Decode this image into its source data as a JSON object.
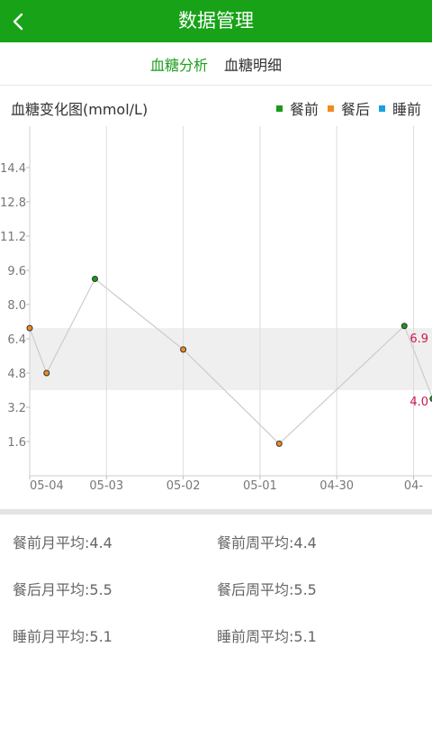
{
  "header": {
    "title": "数据管理",
    "back_icon": "chevron-left-icon"
  },
  "tabs": [
    {
      "label": "血糖分析",
      "active": true
    },
    {
      "label": "血糖明细",
      "active": false
    }
  ],
  "chart_header": {
    "title": "血糖变化图(mmol/L)",
    "legend": [
      {
        "label": "餐前",
        "color": "#1a9a1a"
      },
      {
        "label": "餐后",
        "color": "#f08a1c"
      },
      {
        "label": "睡前",
        "color": "#1aa0e0"
      }
    ]
  },
  "chart_data": {
    "type": "line",
    "title": "血糖变化图(mmol/L)",
    "y_ticks": [
      1.6,
      3.2,
      4.8,
      6.4,
      8.0,
      9.6,
      11.2,
      12.8,
      14.4
    ],
    "y_tick_labels": [
      "1.6",
      "3.2",
      "4.8",
      "6.4",
      "8.0",
      "9.6",
      "11.2",
      "12.8",
      "14.4"
    ],
    "x_tick_labels": [
      "05-04",
      "05-03",
      "05-02",
      "05-01",
      "04-30",
      "04-"
    ],
    "x_ticks": [
      0,
      1,
      2,
      3,
      4,
      5
    ],
    "xlim": [
      0,
      5.1
    ],
    "ylim": [
      0,
      16
    ],
    "grid": {
      "vertical": true,
      "horizontal": false
    },
    "normal_range": {
      "low": 4.0,
      "high": 6.9,
      "labels": [
        "6.9",
        "4.0"
      ]
    },
    "points": [
      {
        "x": 0.0,
        "y": 6.9,
        "series": "餐后"
      },
      {
        "x": 0.22,
        "y": 4.8,
        "series": "餐后"
      },
      {
        "x": 0.85,
        "y": 9.2,
        "series": "餐前"
      },
      {
        "x": 2.0,
        "y": 5.9,
        "series": "餐后"
      },
      {
        "x": 3.25,
        "y": 1.5,
        "series": "餐后"
      },
      {
        "x": 4.88,
        "y": 7.0,
        "series": "餐前"
      },
      {
        "x": 5.25,
        "y": 3.6,
        "series": "餐前"
      }
    ]
  },
  "stats": [
    [
      "餐前月平均:4.4",
      "餐前周平均:4.4"
    ],
    [
      "餐后月平均:5.5",
      "餐后周平均:5.5"
    ],
    [
      "睡前月平均:5.1",
      "睡前周平均:5.1"
    ]
  ]
}
